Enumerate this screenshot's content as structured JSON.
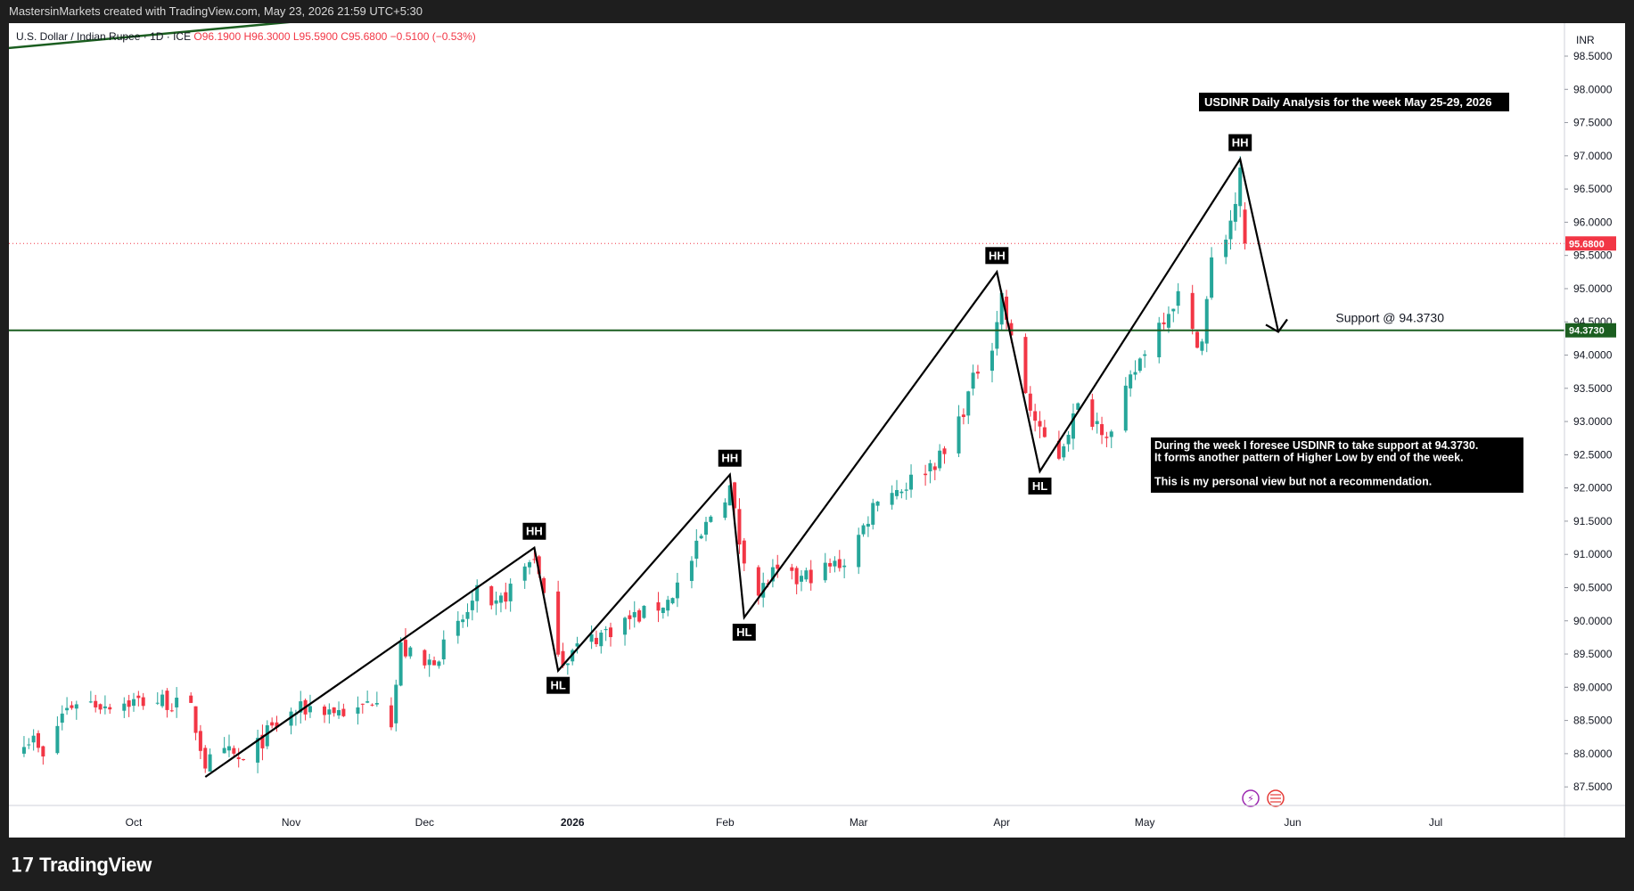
{
  "header": {
    "snapshot_text": "MastersinMarkets created with TradingView.com, May 23, 2026 21:59 UTC+5:30"
  },
  "legend": {
    "symbol": "U.S. Dollar / Indian Rupee · 1D · ICE",
    "open": "O96.1900",
    "high": "H96.3000",
    "low": "L95.5900",
    "close": "C95.6800",
    "change": "−0.5100 (−0.53%)"
  },
  "currency": "INR",
  "footer": {
    "brand": "TradingView"
  },
  "colors": {
    "up": "#26a69a",
    "down": "#f23645",
    "trendline": "#1b5e20",
    "support": "#1b5e20",
    "price_label": "#f23645",
    "support_label": "#1b5e20",
    "pattern": "#000000"
  },
  "chart_data": {
    "type": "candlestick",
    "title": "USDINR Daily Analysis for the week May 25-29, 2026",
    "ylim": [
      87.4,
      99.0
    ],
    "y_ticks": [
      "87.5000",
      "88.0000",
      "88.5000",
      "89.0000",
      "89.5000",
      "90.0000",
      "90.5000",
      "91.0000",
      "91.5000",
      "92.0000",
      "92.5000",
      "93.0000",
      "93.5000",
      "94.0000",
      "94.5000",
      "95.0000",
      "95.5000",
      "96.0000",
      "96.5000",
      "97.0000",
      "97.5000",
      "98.0000",
      "98.5000"
    ],
    "x_ticks": [
      {
        "label": "Oct",
        "date": "2025-10-01"
      },
      {
        "label": "Nov",
        "date": "2025-11-03"
      },
      {
        "label": "Dec",
        "date": "2025-12-01"
      },
      {
        "label": "2026",
        "date": "2026-01-01"
      },
      {
        "label": "Feb",
        "date": "2026-02-02"
      },
      {
        "label": "Mar",
        "date": "2026-03-02"
      },
      {
        "label": "Apr",
        "date": "2026-04-01"
      },
      {
        "label": "May",
        "date": "2026-05-01"
      },
      {
        "label": "Jun",
        "date": "2026-06-01"
      },
      {
        "label": "Jul",
        "date": "2026-07-01"
      }
    ],
    "close_path": [
      [
        "2025-09-05",
        88.3
      ],
      [
        "2025-09-10",
        88.2
      ],
      [
        "2025-09-12",
        87.9
      ],
      [
        "2025-09-16",
        88.6
      ],
      [
        "2025-09-19",
        88.8
      ],
      [
        "2025-09-24",
        88.75
      ],
      [
        "2025-09-30",
        88.78
      ],
      [
        "2025-10-07",
        88.8
      ],
      [
        "2025-10-13",
        88.65
      ],
      [
        "2025-10-16",
        87.85
      ],
      [
        "2025-10-21",
        88.0
      ],
      [
        "2025-10-24",
        87.85
      ],
      [
        "2025-10-29",
        88.3
      ],
      [
        "2025-11-03",
        88.6
      ],
      [
        "2025-11-07",
        88.7
      ],
      [
        "2025-11-12",
        88.65
      ],
      [
        "2025-11-17",
        88.62
      ],
      [
        "2025-11-21",
        88.9
      ],
      [
        "2025-11-24",
        88.5
      ],
      [
        "2025-11-26",
        89.6
      ],
      [
        "2025-12-01",
        89.3
      ],
      [
        "2025-12-05",
        89.6
      ],
      [
        "2025-12-09",
        90.0
      ],
      [
        "2025-12-12",
        90.4
      ],
      [
        "2025-12-15",
        90.1
      ],
      [
        "2025-12-18",
        90.4
      ],
      [
        "2025-12-22",
        90.8
      ],
      [
        "2025-12-24",
        91.0
      ],
      [
        "2025-12-26",
        90.3
      ],
      [
        "2025-12-30",
        89.4
      ],
      [
        "2026-01-02",
        89.6
      ],
      [
        "2026-01-07",
        89.8
      ],
      [
        "2026-01-12",
        90.0
      ],
      [
        "2026-01-16",
        90.1
      ],
      [
        "2026-01-21",
        90.3
      ],
      [
        "2026-01-26",
        90.9
      ],
      [
        "2026-01-30",
        91.6
      ],
      [
        "2026-02-03",
        92.0
      ],
      [
        "2026-02-05",
        91.2
      ],
      [
        "2026-02-09",
        90.4
      ],
      [
        "2026-02-12",
        90.7
      ],
      [
        "2026-02-17",
        90.6
      ],
      [
        "2026-02-20",
        90.7
      ],
      [
        "2026-02-24",
        90.8
      ],
      [
        "2026-02-27",
        90.9
      ],
      [
        "2026-03-03",
        91.4
      ],
      [
        "2026-03-06",
        91.9
      ],
      [
        "2026-03-11",
        92.0
      ],
      [
        "2026-03-16",
        92.3
      ],
      [
        "2026-03-20",
        92.5
      ],
      [
        "2026-03-24",
        93.2
      ],
      [
        "2026-03-27",
        93.8
      ],
      [
        "2026-03-30",
        94.2
      ],
      [
        "2026-04-01",
        94.9
      ],
      [
        "2026-04-03",
        94.2
      ],
      [
        "2026-04-07",
        93.2
      ],
      [
        "2026-04-09",
        92.8
      ],
      [
        "2026-04-13",
        92.5
      ],
      [
        "2026-04-15",
        92.9
      ],
      [
        "2026-04-17",
        93.2
      ],
      [
        "2026-04-21",
        93.0
      ],
      [
        "2026-04-24",
        92.8
      ],
      [
        "2026-04-28",
        93.6
      ],
      [
        "2026-05-01",
        94.1
      ],
      [
        "2026-05-05",
        94.6
      ],
      [
        "2026-05-08",
        94.9
      ],
      [
        "2026-05-11",
        94.3
      ],
      [
        "2026-05-13",
        94.2
      ],
      [
        "2026-05-15",
        95.4
      ],
      [
        "2026-05-18",
        95.8
      ],
      [
        "2026-05-20",
        96.3
      ],
      [
        "2026-05-21",
        96.7
      ],
      [
        "2026-05-22",
        95.68
      ]
    ],
    "pattern_points": [
      {
        "date": "2025-10-16",
        "price": 87.65
      },
      {
        "date": "2025-12-24",
        "price": 91.1,
        "label": "HH"
      },
      {
        "date": "2025-12-29",
        "price": 89.25,
        "label": "HL"
      },
      {
        "date": "2026-02-03",
        "price": 92.2,
        "label": "HH"
      },
      {
        "date": "2026-02-06",
        "price": 90.05,
        "label": "HL"
      },
      {
        "date": "2026-03-31",
        "price": 95.25,
        "label": "HH"
      },
      {
        "date": "2026-04-09",
        "price": 92.25,
        "label": "HL"
      },
      {
        "date": "2026-05-21",
        "price": 96.95,
        "label": "HH"
      },
      {
        "date": "2026-05-29",
        "price": 94.35
      }
    ],
    "trendline": {
      "start": {
        "date": "2025-08-25",
        "price": 98.55
      },
      "end": {
        "date": "2025-12-01",
        "price": 99.2
      }
    },
    "support": {
      "price": 94.373,
      "label": "Support @ 94.3730",
      "tag": "94.3730"
    },
    "last_price": {
      "price": 95.68,
      "tag": "95.6800"
    },
    "annotation_lines": [
      "During the week  I foresee USDINR to take support at 94.3730.",
      "It forms another pattern of Higher Low by end of the week.",
      "",
      "This is my personal view but not a recommendation."
    ]
  }
}
